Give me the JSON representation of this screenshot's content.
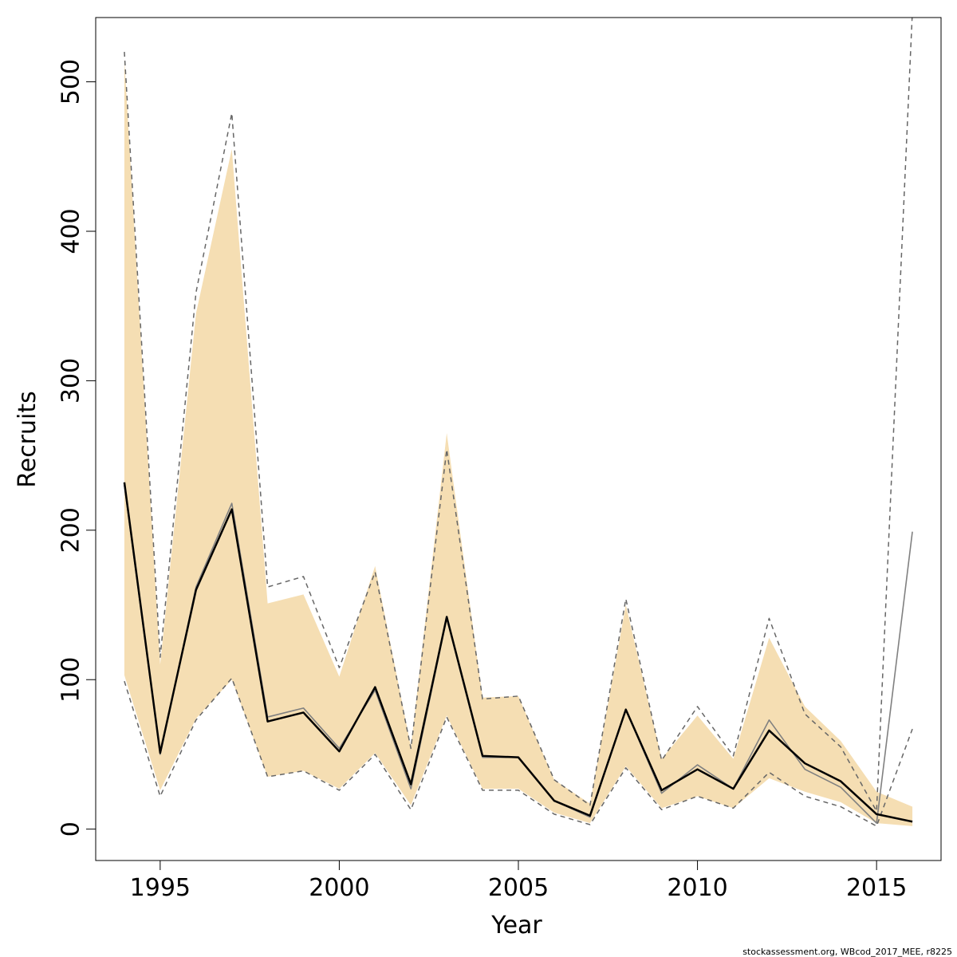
{
  "chart_data": {
    "type": "line",
    "xlabel": "Year",
    "ylabel": "Recruits",
    "xlim": [
      1993.2,
      2016.8
    ],
    "ylim": [
      -21,
      543
    ],
    "x_ticks": [
      1995,
      2000,
      2005,
      2010,
      2015
    ],
    "y_ticks": [
      0,
      100,
      200,
      300,
      400,
      500
    ],
    "grid": false,
    "legend": "none",
    "x": [
      1994,
      1995,
      1996,
      1997,
      1998,
      1999,
      2000,
      2001,
      2002,
      2003,
      2004,
      2005,
      2006,
      2007,
      2008,
      2009,
      2010,
      2011,
      2012,
      2013,
      2014,
      2015,
      2016
    ],
    "series": [
      {
        "role": "estimate",
        "color": "#000000",
        "values": [
          232,
          51,
          160,
          214,
          72,
          78,
          52,
          95,
          30,
          142,
          49,
          48,
          19,
          9,
          80,
          26,
          40,
          27,
          66,
          44,
          32,
          10,
          5
        ]
      },
      {
        "role": "comparison estimate",
        "color": "#808080",
        "values": [
          230,
          50,
          162,
          218,
          75,
          81,
          54,
          93,
          27,
          141,
          48,
          48,
          19,
          8,
          80,
          24,
          43,
          27,
          73,
          40,
          28,
          4,
          199
        ]
      },
      {
        "role": "confidence band",
        "color": "#f5deb3",
        "lower": [
          103,
          26,
          74,
          100,
          35,
          39,
          27,
          51,
          16,
          76,
          27,
          27,
          11,
          4,
          42,
          14,
          22,
          14,
          34,
          25,
          18,
          4,
          2
        ],
        "upper": [
          515,
          110,
          345,
          455,
          151,
          157,
          102,
          176,
          55,
          265,
          88,
          89,
          33,
          17,
          150,
          47,
          76,
          47,
          128,
          82,
          59,
          25,
          15
        ]
      },
      {
        "role": "comparison interval lower",
        "color": "#666666",
        "values": [
          99,
          22,
          73,
          101,
          35,
          39,
          26,
          50,
          13,
          75,
          26,
          26,
          10,
          3,
          41,
          13,
          22,
          14,
          38,
          22,
          15,
          2,
          67
        ]
      },
      {
        "role": "comparison interval upper",
        "color": "#666666",
        "values": [
          520,
          115,
          359,
          479,
          162,
          169,
          108,
          172,
          54,
          254,
          87,
          89,
          33,
          16,
          154,
          46,
          82,
          49,
          141,
          77,
          55,
          12,
          547
        ]
      }
    ]
  },
  "credit": "stockassessment.org, WBcod_2017_MEE, r8225"
}
